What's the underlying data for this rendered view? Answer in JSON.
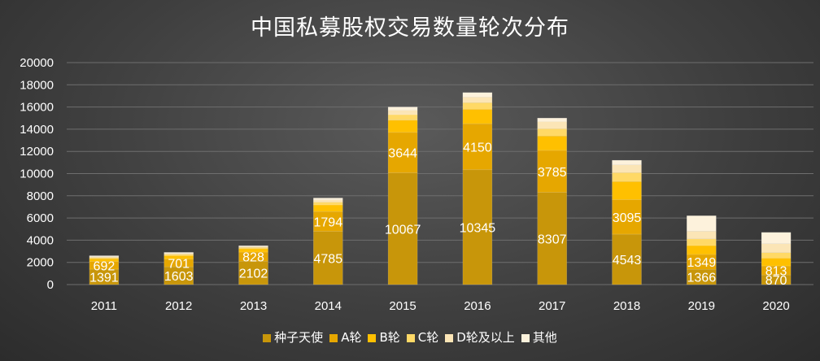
{
  "chart_data": {
    "type": "bar",
    "stacked": true,
    "title": "中国私募股权交易数量轮次分布",
    "categories": [
      "2011",
      "2012",
      "2013",
      "2014",
      "2015",
      "2016",
      "2017",
      "2018",
      "2019",
      "2020"
    ],
    "ylim": [
      0,
      20000
    ],
    "yticks": [
      "0",
      "2000",
      "4000",
      "6000",
      "8000",
      "10000",
      "12000",
      "14000",
      "16000",
      "18000",
      "20000"
    ],
    "grid": true,
    "legend_position": "bottom",
    "series": [
      {
        "name": "种子天使",
        "color": "#c8960a",
        "values": [
          1391,
          1603,
          2102,
          4785,
          10067,
          10345,
          8307,
          4543,
          1366,
          870
        ],
        "labels": [
          "1391",
          "1603",
          "2102",
          "4785",
          "10067",
          "10345",
          "8307",
          "4543",
          "1366",
          "870"
        ]
      },
      {
        "name": "A轮",
        "color": "#e6a700",
        "values": [
          692,
          701,
          828,
          1794,
          3644,
          4150,
          3785,
          3095,
          1349,
          813
        ],
        "labels": [
          "692",
          "701",
          "828",
          "1794",
          "3644",
          "4150",
          "3785",
          "3095",
          "1349",
          "813"
        ]
      },
      {
        "name": "B轮",
        "color": "#ffc000",
        "values": [
          250,
          300,
          300,
          600,
          1100,
          1300,
          1300,
          1650,
          800,
          700
        ],
        "labels": []
      },
      {
        "name": "C轮",
        "color": "#ffd966",
        "values": [
          100,
          120,
          120,
          250,
          500,
          600,
          650,
          800,
          600,
          500
        ],
        "labels": []
      },
      {
        "name": "D轮及以上",
        "color": "#fbe5b6",
        "values": [
          80,
          100,
          70,
          200,
          400,
          500,
          650,
          700,
          700,
          800
        ],
        "labels": []
      },
      {
        "name": "其他",
        "color": "#fdf2dc",
        "values": [
          87,
          76,
          80,
          171,
          289,
          405,
          308,
          412,
          1385,
          1017
        ],
        "labels": []
      }
    ]
  }
}
